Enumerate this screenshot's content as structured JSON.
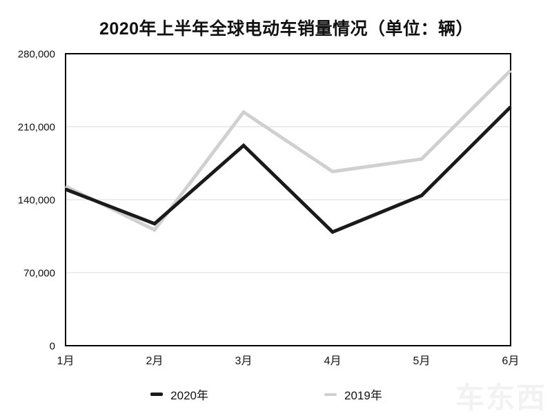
{
  "title": "2020年上半年全球电动车销量情况（单位：辆）",
  "chart_data": {
    "type": "line",
    "categories": [
      "1月",
      "2月",
      "3月",
      "4月",
      "5月",
      "6月"
    ],
    "series": [
      {
        "name": "2020年",
        "color": "#1a1a1a",
        "values": [
          150000,
          117000,
          192000,
          109000,
          144000,
          229000
        ]
      },
      {
        "name": "2019年",
        "color": "#d0d0d0",
        "values": [
          153000,
          111000,
          224000,
          167000,
          179000,
          264000
        ]
      }
    ],
    "xlabel": "",
    "ylabel": "",
    "ylim": [
      0,
      280000
    ],
    "yticks": [
      0,
      70000,
      140000,
      210000,
      280000
    ],
    "ytick_labels": [
      "0",
      "70,000",
      "140,000",
      "210,000",
      "280,000"
    ],
    "grid": "horizontal-inner",
    "gridline_color": "#d9d9d9",
    "border_color": "#000000",
    "tick_label_color": "#111111",
    "legend_position": "bottom"
  },
  "watermark": "车东西"
}
